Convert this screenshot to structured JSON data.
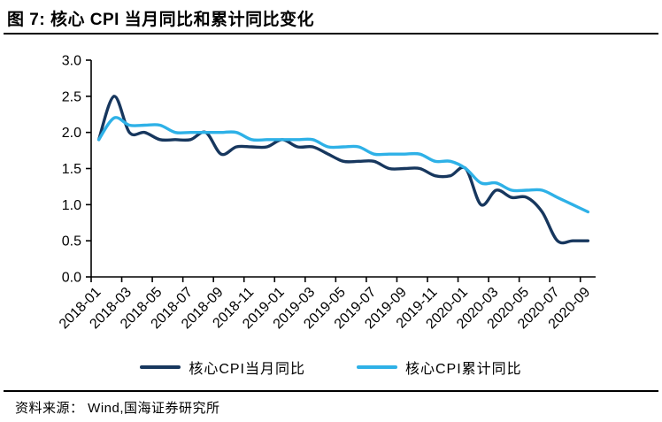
{
  "page": {
    "title": "图 7:  核心 CPI 当月同比和累计同比变化",
    "source": "资料来源：  Wind,国海证券研究所"
  },
  "chart_data": {
    "type": "line",
    "title": "核心 CPI 当月同比和累计同比变化",
    "categories": [
      "2018-01",
      "2018-02",
      "2018-03",
      "2018-04",
      "2018-05",
      "2018-06",
      "2018-07",
      "2018-08",
      "2018-09",
      "2018-10",
      "2018-11",
      "2018-12",
      "2019-01",
      "2019-02",
      "2019-03",
      "2019-04",
      "2019-05",
      "2019-06",
      "2019-07",
      "2019-08",
      "2019-09",
      "2019-10",
      "2019-11",
      "2019-12",
      "2020-01",
      "2020-02",
      "2020-03",
      "2020-04",
      "2020-05",
      "2020-06",
      "2020-07",
      "2020-08",
      "2020-09"
    ],
    "x_tick_labels": [
      "2018-01",
      "2018-03",
      "2018-05",
      "2018-07",
      "2018-09",
      "2018-11",
      "2019-01",
      "2019-03",
      "2019-05",
      "2019-07",
      "2019-09",
      "2019-11",
      "2020-01",
      "2020-03",
      "2020-05",
      "2020-07",
      "2020-09"
    ],
    "series": [
      {
        "name": "核心CPI当月同比",
        "color": "#17375E",
        "values": [
          1.9,
          2.5,
          2.0,
          2.0,
          1.9,
          1.9,
          1.9,
          2.0,
          1.7,
          1.8,
          1.8,
          1.8,
          1.9,
          1.8,
          1.8,
          1.7,
          1.6,
          1.6,
          1.6,
          1.5,
          1.5,
          1.5,
          1.4,
          1.4,
          1.5,
          1.0,
          1.2,
          1.1,
          1.1,
          0.9,
          0.5,
          0.5,
          0.5
        ]
      },
      {
        "name": "核心CPI累计同比",
        "color": "#2EB1E7",
        "values": [
          1.9,
          2.2,
          2.1,
          2.1,
          2.1,
          2.0,
          2.0,
          2.0,
          2.0,
          2.0,
          1.9,
          1.9,
          1.9,
          1.9,
          1.9,
          1.8,
          1.8,
          1.8,
          1.7,
          1.7,
          1.7,
          1.7,
          1.6,
          1.6,
          1.5,
          1.3,
          1.3,
          1.2,
          1.2,
          1.2,
          1.1,
          1.0,
          0.9
        ]
      }
    ],
    "ylim": [
      0,
      3
    ],
    "y_ticks": [
      "3.0",
      "2.5",
      "2.0",
      "1.5",
      "1.0",
      "0.5",
      "0.0"
    ],
    "grid": false,
    "legend_position": "bottom",
    "xlabel": "",
    "ylabel": ""
  }
}
